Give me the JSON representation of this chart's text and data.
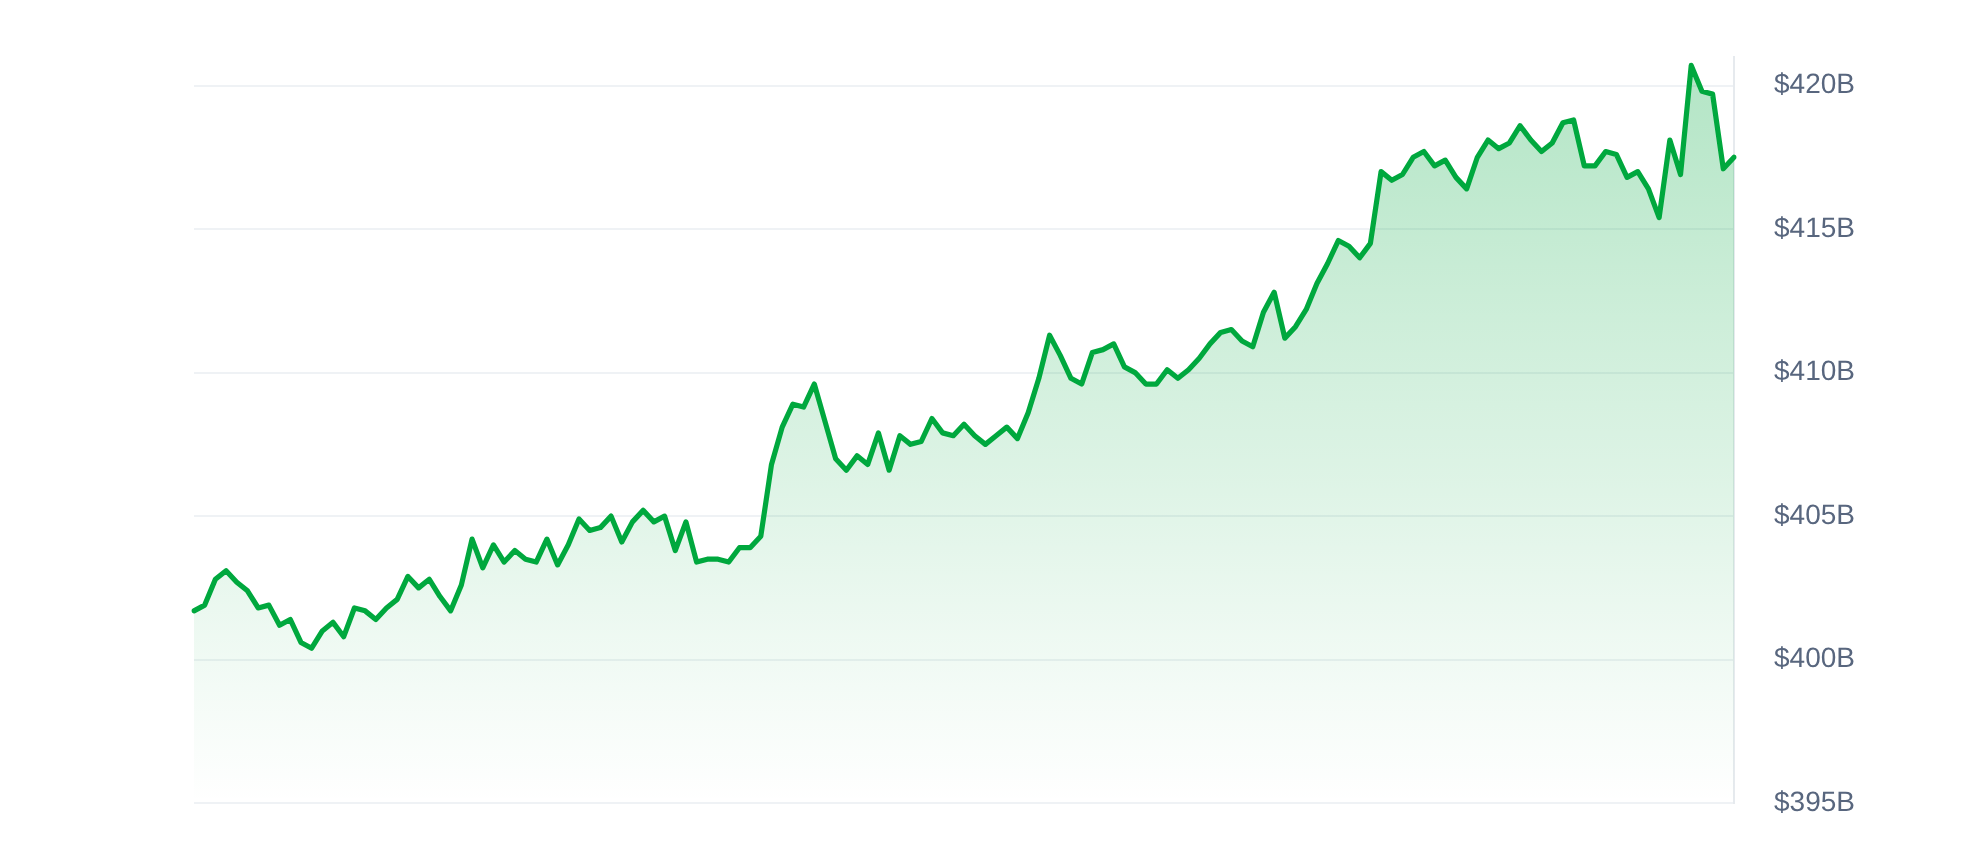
{
  "chart_data": {
    "type": "area",
    "categories": [
      null,
      null,
      null,
      null,
      null,
      null,
      null,
      null,
      null,
      null,
      null,
      null,
      null,
      null,
      null,
      null,
      null,
      null,
      null,
      null,
      null,
      null,
      null,
      null,
      null,
      null,
      null,
      null,
      null,
      null,
      null,
      null,
      null,
      null,
      null,
      null,
      null,
      null,
      null,
      null,
      null,
      null,
      null,
      null,
      null,
      null,
      null,
      null,
      null,
      null,
      null,
      null,
      null,
      null,
      null,
      null,
      null,
      null,
      null,
      null,
      null,
      null,
      null,
      null,
      null,
      null,
      null,
      null,
      null,
      null,
      null,
      null,
      null,
      null,
      null,
      null,
      null,
      null,
      null,
      null,
      null,
      null,
      null,
      null,
      null,
      null,
      null,
      null,
      null,
      null,
      null,
      null,
      null,
      null,
      null,
      null,
      null,
      null,
      null,
      null,
      null,
      null,
      null,
      null,
      null,
      null,
      null,
      null,
      null,
      null,
      null,
      null,
      null,
      null,
      null,
      null,
      null,
      null,
      null,
      null,
      null,
      null,
      null,
      null,
      null,
      null,
      null,
      null,
      null,
      null,
      null,
      null,
      null,
      null,
      null,
      null,
      null,
      null,
      null,
      null,
      null,
      null,
      null,
      null,
      null
    ],
    "values": [
      401.7,
      401.9,
      402.8,
      403.1,
      402.7,
      402.4,
      401.8,
      401.9,
      401.2,
      401.4,
      400.6,
      400.4,
      401.0,
      401.3,
      400.8,
      401.8,
      401.7,
      401.4,
      401.8,
      402.1,
      402.9,
      402.5,
      402.8,
      402.2,
      401.7,
      402.6,
      404.2,
      403.2,
      404.0,
      403.4,
      403.8,
      403.5,
      403.4,
      404.2,
      403.3,
      404.0,
      404.9,
      404.5,
      404.6,
      405.0,
      404.1,
      404.8,
      405.2,
      404.8,
      405.0,
      403.8,
      404.8,
      403.4,
      403.5,
      403.5,
      403.4,
      403.9,
      403.9,
      404.3,
      406.8,
      408.1,
      408.9,
      408.8,
      409.6,
      408.3,
      407.0,
      406.6,
      407.1,
      406.8,
      407.9,
      406.6,
      407.8,
      407.5,
      407.6,
      408.4,
      407.9,
      407.8,
      408.2,
      407.8,
      407.5,
      407.8,
      408.1,
      407.7,
      408.6,
      409.8,
      411.3,
      410.6,
      409.8,
      409.6,
      410.7,
      410.8,
      411.0,
      410.2,
      410.0,
      409.6,
      409.6,
      410.1,
      409.8,
      410.1,
      410.5,
      411.0,
      411.4,
      411.5,
      411.1,
      410.9,
      412.1,
      412.8,
      411.2,
      411.6,
      412.2,
      413.1,
      413.8,
      414.6,
      414.4,
      414.0,
      414.5,
      417.0,
      416.7,
      416.9,
      417.5,
      417.7,
      417.2,
      417.4,
      416.8,
      416.4,
      417.5,
      418.1,
      417.8,
      418.0,
      418.6,
      418.1,
      417.7,
      418.0,
      418.7,
      418.8,
      417.2,
      417.2,
      417.7,
      417.6,
      416.8,
      417.0,
      416.4,
      415.4,
      418.1,
      416.9,
      420.7,
      419.8,
      419.7,
      417.1,
      417.5
    ],
    "color": "#00a83e",
    "ylim": [
      395,
      421
    ],
    "yticks": [
      {
        "value": 395,
        "label": "$395B"
      },
      {
        "value": 400,
        "label": "$400B"
      },
      {
        "value": 405,
        "label": "$405B"
      },
      {
        "value": 410,
        "label": "$410B"
      },
      {
        "value": 415,
        "label": "$415B"
      },
      {
        "value": 420,
        "label": "$420B"
      }
    ],
    "grid": "y",
    "tick_labels": "y"
  }
}
